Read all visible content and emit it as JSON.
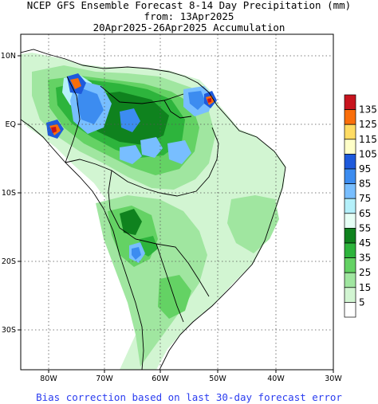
{
  "header": {
    "line1": "NCEP GFS Ensemble Forecast 8-14 Day Precipitation (mm)",
    "line2": "from: 13Apr2025",
    "line3": "20Apr2025-26Apr2025 Accumulation"
  },
  "footer": "Bias correction based on last 30-day forecast error",
  "axes": {
    "lon_labels": [
      "80W",
      "70W",
      "60W",
      "50W",
      "40W",
      "30W"
    ],
    "lat_labels": [
      "10N",
      "EQ",
      "10S",
      "20S",
      "30S"
    ]
  },
  "legend": {
    "entries": [
      {
        "label": "135",
        "color": "#c8141e"
      },
      {
        "label": "125",
        "color": "#fa6e0a"
      },
      {
        "label": "115",
        "color": "#ffdc64"
      },
      {
        "label": "105",
        "color": "#ffffc8"
      },
      {
        "label": "95",
        "color": "#1e5adc"
      },
      {
        "label": "85",
        "color": "#3c8cf0"
      },
      {
        "label": "75",
        "color": "#78beff"
      },
      {
        "label": "65",
        "color": "#b4f0fa"
      },
      {
        "label": "55",
        "color": "#e6fff5"
      },
      {
        "label": "45",
        "color": "#0f821e"
      },
      {
        "label": "35",
        "color": "#2db43c"
      },
      {
        "label": "25",
        "color": "#64d264"
      },
      {
        "label": "15",
        "color": "#a0e6a0"
      },
      {
        "label": "5",
        "color": "#d2f5d2"
      },
      {
        "label": "",
        "color": "#ffffff"
      }
    ]
  }
}
